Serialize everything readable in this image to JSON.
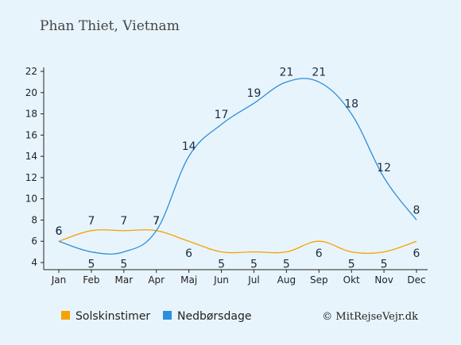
{
  "chart_data": {
    "type": "line",
    "title": "Phan Thiet, Vietnam",
    "categories": [
      "Jan",
      "Feb",
      "Mar",
      "Apr",
      "Maj",
      "Jun",
      "Jul",
      "Aug",
      "Sep",
      "Okt",
      "Nov",
      "Dec"
    ],
    "series": [
      {
        "name": "Solskinstimer",
        "color": "#f5a300",
        "values": [
          6,
          7,
          7,
          7,
          6,
          5,
          5,
          5,
          6,
          5,
          5,
          6
        ]
      },
      {
        "name": "Nedbørsdage",
        "color": "#2a8fe0",
        "values": [
          6,
          5,
          5,
          7,
          14,
          17,
          19,
          21,
          21,
          18,
          12,
          8
        ]
      }
    ],
    "yticks": [
      4,
      6,
      8,
      10,
      12,
      14,
      16,
      18,
      20,
      22
    ],
    "ylim": [
      4,
      22
    ],
    "legend_position": "bottom-left",
    "grid": false,
    "credit": "© MitRejseVejr.dk"
  }
}
